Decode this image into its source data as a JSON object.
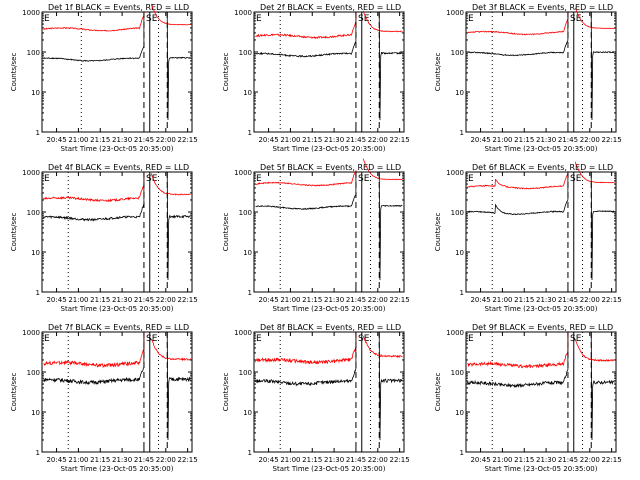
{
  "chart_data": [
    {
      "type": "line",
      "title": "Det 1f BLACK = Events, RED = LLD",
      "xlabel": "Start Time (23-Oct-05 20:35:00)",
      "ylabel": "Counts/sec",
      "ylim": [
        1,
        1000
      ],
      "yscale": "log",
      "xlim": [
        "20:35",
        "22:18"
      ],
      "xticks": [
        "20:45",
        "21:00",
        "21:15",
        "21:30",
        "21:45",
        "22:00",
        "22:15"
      ],
      "yticks": [
        "1",
        "10",
        "100",
        "1000"
      ],
      "markers": [
        {
          "label": "E",
          "time": "20:35",
          "style": "solid"
        },
        {
          "label": "S",
          "time": "21:45",
          "style": "dashed"
        },
        {
          "label": "E",
          "time": "21:49",
          "style": "solid"
        },
        {
          "label": "",
          "time": "21:55",
          "style": "dotted"
        },
        {
          "label": "",
          "time": "21:02",
          "style": "dotted"
        },
        {
          "label": "",
          "time": "22:01",
          "style": "dashed"
        }
      ],
      "series": [
        {
          "color": "#ff0000",
          "baseline": 370,
          "noise": 0.03,
          "spike": null
        },
        {
          "color": "#000000",
          "baseline": 65,
          "noise": 0.03,
          "spike": null
        }
      ]
    },
    {
      "type": "line",
      "title": "Det 2f BLACK = Events, RED = LLD",
      "xlabel": "Start Time (23-Oct-05 20:35:00)",
      "ylabel": "Counts/sec",
      "ylim": [
        1,
        1000
      ],
      "yscale": "log",
      "xlim": [
        "20:35",
        "22:18"
      ],
      "xticks": [
        "20:45",
        "21:00",
        "21:15",
        "21:30",
        "21:45",
        "22:00",
        "22:15"
      ],
      "yticks": [
        "1",
        "10",
        "100",
        "1000"
      ],
      "markers": [
        {
          "label": "E",
          "time": "20:35",
          "style": "solid"
        },
        {
          "label": "S",
          "time": "21:45",
          "style": "dashed"
        },
        {
          "label": "E",
          "time": "21:49",
          "style": "solid"
        },
        {
          "label": "",
          "time": "21:55",
          "style": "dotted"
        },
        {
          "label": "",
          "time": "20:53",
          "style": "dotted"
        },
        {
          "label": "",
          "time": "22:01",
          "style": "dashed"
        }
      ],
      "series": [
        {
          "color": "#ff0000",
          "baseline": 250,
          "noise": 0.05,
          "spike": null
        },
        {
          "color": "#000000",
          "baseline": 85,
          "noise": 0.04,
          "spike": null
        }
      ]
    },
    {
      "type": "line",
      "title": "Det 3f BLACK = Events, RED = LLD",
      "xlabel": "Start Time (23-Oct-05 20:35:00)",
      "ylabel": "Counts/sec",
      "ylim": [
        1,
        1000
      ],
      "yscale": "log",
      "xlim": [
        "20:35",
        "22:18"
      ],
      "xticks": [
        "20:45",
        "21:00",
        "21:15",
        "21:30",
        "21:45",
        "22:00",
        "22:15"
      ],
      "yticks": [
        "1",
        "10",
        "100",
        "1000"
      ],
      "markers": [
        {
          "label": "E",
          "time": "20:35",
          "style": "solid"
        },
        {
          "label": "S",
          "time": "21:45",
          "style": "dashed"
        },
        {
          "label": "E",
          "time": "21:49",
          "style": "solid"
        },
        {
          "label": "",
          "time": "21:55",
          "style": "dotted"
        },
        {
          "label": "",
          "time": "20:53",
          "style": "dotted"
        },
        {
          "label": "",
          "time": "22:01",
          "style": "dashed"
        }
      ],
      "series": [
        {
          "color": "#ff0000",
          "baseline": 300,
          "noise": 0.03,
          "spike": null
        },
        {
          "color": "#000000",
          "baseline": 90,
          "noise": 0.03,
          "spike": null
        }
      ]
    },
    {
      "type": "line",
      "title": "Det 4f BLACK = Events, RED = LLD",
      "xlabel": "Start Time (23-Oct-05 20:35:00)",
      "ylabel": "Counts/sec",
      "ylim": [
        1,
        1000
      ],
      "yscale": "log",
      "xlim": [
        "20:35",
        "22:18"
      ],
      "xticks": [
        "20:45",
        "21:00",
        "21:15",
        "21:30",
        "21:45",
        "22:00",
        "22:15"
      ],
      "yticks": [
        "1",
        "10",
        "100",
        "1000"
      ],
      "markers": [
        {
          "label": "E",
          "time": "20:35",
          "style": "solid"
        },
        {
          "label": "S",
          "time": "21:45",
          "style": "dashed"
        },
        {
          "label": "E",
          "time": "21:49",
          "style": "solid"
        },
        {
          "label": "",
          "time": "21:55",
          "style": "dotted"
        },
        {
          "label": "",
          "time": "20:53",
          "style": "dotted"
        },
        {
          "label": "",
          "time": "22:01",
          "style": "dashed"
        }
      ],
      "series": [
        {
          "color": "#ff0000",
          "baseline": 210,
          "noise": 0.06,
          "spike": null
        },
        {
          "color": "#000000",
          "baseline": 70,
          "noise": 0.06,
          "spike": null
        }
      ]
    },
    {
      "type": "line",
      "title": "Det 5f BLACK = Events, RED = LLD",
      "xlabel": "Start Time (23-Oct-05 20:35:00)",
      "ylabel": "Counts/sec",
      "ylim": [
        1,
        1000
      ],
      "yscale": "log",
      "xlim": [
        "20:35",
        "22:18"
      ],
      "xticks": [
        "20:45",
        "21:00",
        "21:15",
        "21:30",
        "21:45",
        "22:00",
        "22:15"
      ],
      "yticks": [
        "1",
        "10",
        "100",
        "1000"
      ],
      "markers": [
        {
          "label": "E",
          "time": "20:35",
          "style": "solid"
        },
        {
          "label": "S",
          "time": "21:45",
          "style": "dashed"
        },
        {
          "label": "E",
          "time": "21:49",
          "style": "solid"
        },
        {
          "label": "",
          "time": "21:55",
          "style": "dotted"
        },
        {
          "label": "",
          "time": "20:53",
          "style": "dotted"
        },
        {
          "label": "",
          "time": "22:01",
          "style": "dashed"
        }
      ],
      "series": [
        {
          "color": "#ff0000",
          "baseline": 500,
          "noise": 0.03,
          "spike": null
        },
        {
          "color": "#000000",
          "baseline": 130,
          "noise": 0.03,
          "spike": null
        }
      ]
    },
    {
      "type": "line",
      "title": "Det 6f BLACK = Events, RED = LLD",
      "xlabel": "Start Time (23-Oct-05 20:35:00)",
      "ylabel": "Counts/sec",
      "ylim": [
        1,
        1000
      ],
      "yscale": "log",
      "xlim": [
        "20:35",
        "22:18"
      ],
      "xticks": [
        "20:45",
        "21:00",
        "21:15",
        "21:30",
        "21:45",
        "22:00",
        "22:15"
      ],
      "yticks": [
        "1",
        "10",
        "100",
        "1000"
      ],
      "markers": [
        {
          "label": "E",
          "time": "20:35",
          "style": "solid"
        },
        {
          "label": "S",
          "time": "21:45",
          "style": "dashed"
        },
        {
          "label": "E",
          "time": "21:49",
          "style": "solid"
        },
        {
          "label": "",
          "time": "21:55",
          "style": "dotted"
        },
        {
          "label": "",
          "time": "20:53",
          "style": "dotted"
        },
        {
          "label": "",
          "time": "22:01",
          "style": "dashed"
        }
      ],
      "series": [
        {
          "color": "#ff0000",
          "baseline": 420,
          "noise": 0.03,
          "spike": {
            "time": "20:55",
            "peak": 650
          }
        },
        {
          "color": "#000000",
          "baseline": 95,
          "noise": 0.03,
          "spike": {
            "time": "20:55",
            "peak": 160
          }
        }
      ]
    },
    {
      "type": "line",
      "title": "Det 7f BLACK = Events, RED = LLD",
      "xlabel": "Start Time (23-Oct-05 20:35:00)",
      "ylabel": "Counts/sec",
      "ylim": [
        1,
        1000
      ],
      "yscale": "log",
      "xlim": [
        "20:35",
        "22:18"
      ],
      "xticks": [
        "20:45",
        "21:00",
        "21:15",
        "21:30",
        "21:45",
        "22:00",
        "22:15"
      ],
      "yticks": [
        "1",
        "10",
        "100",
        "1000"
      ],
      "markers": [
        {
          "label": "E",
          "time": "20:35",
          "style": "solid"
        },
        {
          "label": "S",
          "time": "21:45",
          "style": "dashed"
        },
        {
          "label": "E",
          "time": "21:49",
          "style": "solid"
        },
        {
          "label": "",
          "time": "21:55",
          "style": "dotted"
        },
        {
          "label": "",
          "time": "20:53",
          "style": "dotted"
        },
        {
          "label": "",
          "time": "22:01",
          "style": "dashed"
        }
      ],
      "series": [
        {
          "color": "#ff0000",
          "baseline": 160,
          "noise": 0.1,
          "spike": null
        },
        {
          "color": "#000000",
          "baseline": 60,
          "noise": 0.1,
          "spike": null
        }
      ]
    },
    {
      "type": "line",
      "title": "Det 8f BLACK = Events, RED = LLD",
      "xlabel": "Start Time (23-Oct-05 20:35:00)",
      "ylabel": "Counts/sec",
      "ylim": [
        1,
        1000
      ],
      "yscale": "log",
      "xlim": [
        "20:35",
        "22:18"
      ],
      "xticks": [
        "20:45",
        "21:00",
        "21:15",
        "21:30",
        "21:45",
        "22:00",
        "22:15"
      ],
      "yticks": [
        "1",
        "10",
        "100",
        "1000"
      ],
      "markers": [
        {
          "label": "E",
          "time": "20:35",
          "style": "solid"
        },
        {
          "label": "S",
          "time": "21:45",
          "style": "dashed"
        },
        {
          "label": "E",
          "time": "21:49",
          "style": "solid"
        },
        {
          "label": "",
          "time": "21:55",
          "style": "dotted"
        },
        {
          "label": "",
          "time": "20:53",
          "style": "dotted"
        },
        {
          "label": "",
          "time": "22:01",
          "style": "dashed"
        }
      ],
      "series": [
        {
          "color": "#ff0000",
          "baseline": 190,
          "noise": 0.1,
          "spike": null
        },
        {
          "color": "#000000",
          "baseline": 55,
          "noise": 0.1,
          "spike": null
        }
      ]
    },
    {
      "type": "line",
      "title": "Det 9f BLACK = Events, RED = LLD",
      "xlabel": "Start Time (23-Oct-05 20:35:00)",
      "ylabel": "Counts/sec",
      "ylim": [
        1,
        1000
      ],
      "yscale": "log",
      "xlim": [
        "20:35",
        "22:18"
      ],
      "xticks": [
        "20:45",
        "21:00",
        "21:15",
        "21:30",
        "21:45",
        "22:00",
        "22:15"
      ],
      "yticks": [
        "1",
        "10",
        "100",
        "1000"
      ],
      "markers": [
        {
          "label": "E",
          "time": "20:35",
          "style": "solid"
        },
        {
          "label": "S",
          "time": "21:45",
          "style": "dashed"
        },
        {
          "label": "E",
          "time": "21:49",
          "style": "solid"
        },
        {
          "label": "",
          "time": "21:55",
          "style": "dotted"
        },
        {
          "label": "",
          "time": "20:53",
          "style": "dotted"
        },
        {
          "label": "",
          "time": "22:01",
          "style": "dashed"
        }
      ],
      "series": [
        {
          "color": "#ff0000",
          "baseline": 150,
          "noise": 0.09,
          "spike": null
        },
        {
          "color": "#000000",
          "baseline": 50,
          "noise": 0.09,
          "spike": null
        }
      ]
    }
  ]
}
